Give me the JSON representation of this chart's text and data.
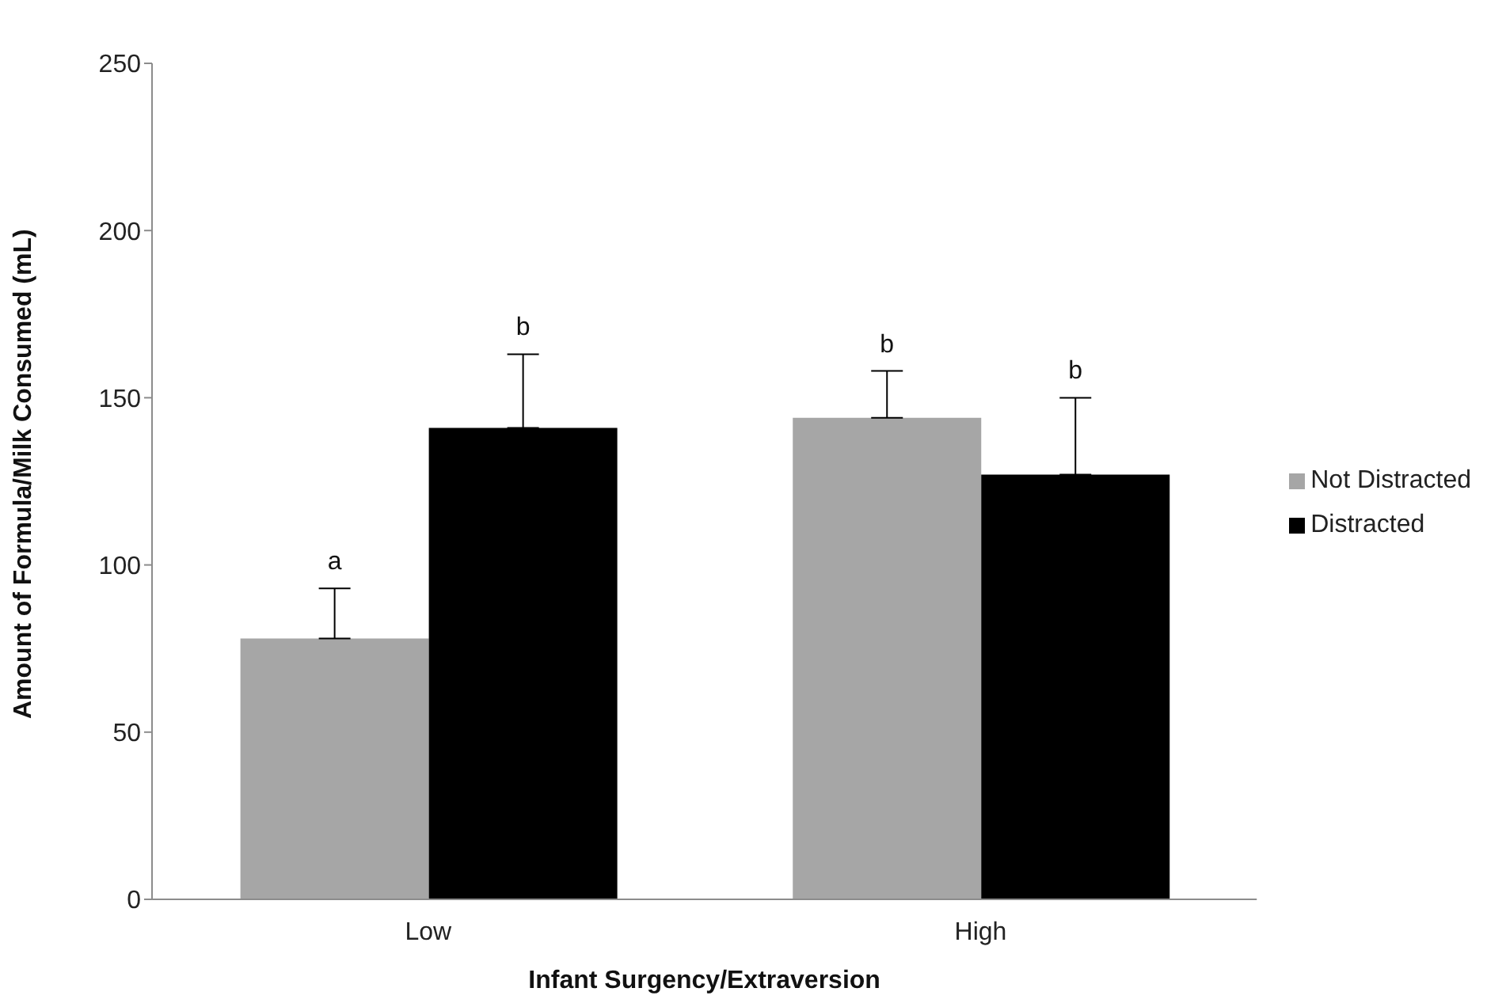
{
  "chart_data": {
    "type": "bar",
    "xlabel": "Infant Surgency/Extraversion",
    "ylabel": "Amount of Formula/Milk Consumed (mL)",
    "categories": [
      "Low",
      "High"
    ],
    "series": [
      {
        "name": "Not Distracted",
        "color": "#a6a6a6",
        "values": [
          78,
          144
        ],
        "errors": [
          [
            78,
            93
          ],
          [
            144,
            158
          ]
        ]
      },
      {
        "name": "Distracted",
        "color": "#000000",
        "values": [
          141,
          127
        ],
        "errors": [
          [
            141,
            163
          ],
          [
            127,
            150
          ]
        ]
      }
    ],
    "ylim": [
      0,
      250
    ],
    "yticks": [
      0,
      50,
      100,
      150,
      200,
      250
    ],
    "grid": false,
    "legend": "right",
    "annotations": [
      "a",
      "b",
      "b",
      "b"
    ]
  }
}
